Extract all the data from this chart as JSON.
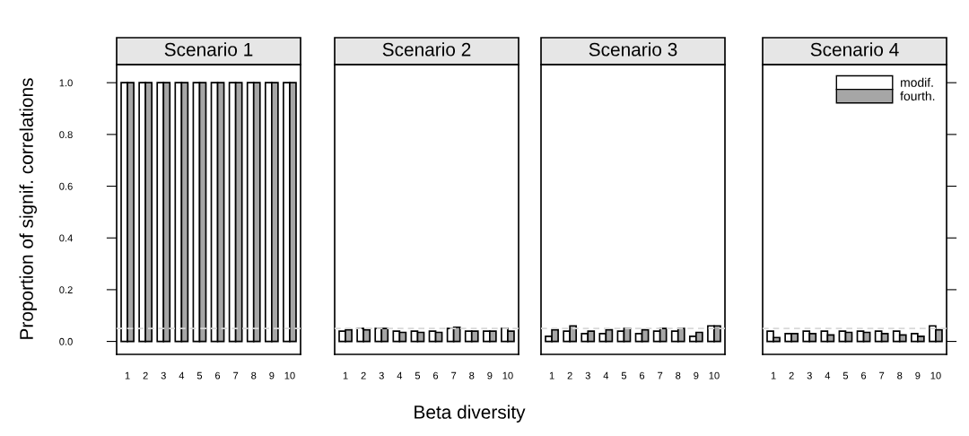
{
  "chart_data": [
    {
      "type": "bar",
      "title": "Scenario 1",
      "ylabel": "Proportion of signif. correlations",
      "categories": [
        "1",
        "2",
        "3",
        "4",
        "5",
        "6",
        "7",
        "8",
        "9",
        "10"
      ],
      "ylim": [
        -0.05,
        1.07
      ],
      "yticks": [
        {
          "value": 0,
          "label": "0.0"
        },
        0.2,
        0.4,
        0.6,
        0.8,
        {
          "value": 1,
          "label": "1.0"
        }
      ],
      "ref_lines": [
        {
          "axis": "y",
          "value": 0.05,
          "color": "#d9d9d9",
          "line_style": "dashed"
        }
      ],
      "series": [
        {
          "color": "#ffffff",
          "values": [
            1,
            1,
            1,
            1,
            1,
            1,
            1,
            1,
            1,
            1
          ]
        },
        {
          "color": "#a6a6a6",
          "values": [
            1,
            1,
            1,
            1,
            1,
            1,
            1,
            1,
            1,
            1
          ]
        }
      ]
    },
    {
      "type": "bar",
      "title": "Scenario 2",
      "xlabel": "Beta diversity",
      "categories": [
        "1",
        "2",
        "3",
        "4",
        "5",
        "6",
        "7",
        "8",
        "9",
        "10"
      ],
      "ylim": [
        -0.05,
        1.07
      ],
      "tick_labels": "x",
      "ref_lines": [
        {
          "axis": "y",
          "value": 0.05,
          "color": "#d9d9d9",
          "line_style": "dashed"
        }
      ],
      "series": [
        {
          "color": "#ffffff",
          "values": [
            0.04,
            0.05,
            0.05,
            0.04,
            0.04,
            0.04,
            0.05,
            0.04,
            0.04,
            0.05
          ]
        },
        {
          "color": "#a6a6a6",
          "values": [
            0.045,
            0.045,
            0.05,
            0.035,
            0.035,
            0.035,
            0.055,
            0.04,
            0.04,
            0.04
          ]
        }
      ]
    },
    {
      "type": "bar",
      "title": "Scenario 3",
      "categories": [
        "1",
        "2",
        "3",
        "4",
        "5",
        "6",
        "7",
        "8",
        "9",
        "10"
      ],
      "ylim": [
        -0.05,
        1.07
      ],
      "tick_labels": "x",
      "ref_lines": [
        {
          "axis": "y",
          "value": 0.05,
          "color": "#d9d9d9",
          "line_style": "dashed"
        }
      ],
      "series": [
        {
          "color": "#ffffff",
          "values": [
            0.02,
            0.04,
            0.03,
            0.03,
            0.04,
            0.03,
            0.04,
            0.04,
            0.02,
            0.06
          ]
        },
        {
          "color": "#a6a6a6",
          "values": [
            0.045,
            0.06,
            0.04,
            0.045,
            0.05,
            0.045,
            0.05,
            0.05,
            0.035,
            0.06
          ]
        }
      ]
    },
    {
      "type": "bar",
      "title": "Scenario 4",
      "categories": [
        "1",
        "2",
        "3",
        "4",
        "5",
        "6",
        "7",
        "8",
        "9",
        "10"
      ],
      "ylim": [
        -0.05,
        1.07
      ],
      "yticks": [
        0,
        0.2,
        0.4,
        0.6,
        0.8,
        1
      ],
      "tick_labels": "x",
      "legend": "top right",
      "ref_lines": [
        {
          "axis": "y",
          "value": 0.05,
          "color": "#d9d9d9",
          "line_style": "dashed"
        }
      ],
      "series": [
        {
          "name": "modif.",
          "color": "#ffffff",
          "values": [
            0.04,
            0.03,
            0.04,
            0.04,
            0.04,
            0.04,
            0.04,
            0.04,
            0.03,
            0.06
          ]
        },
        {
          "name": "fourth.",
          "color": "#a6a6a6",
          "values": [
            0.015,
            0.03,
            0.03,
            0.025,
            0.035,
            0.035,
            0.03,
            0.025,
            0.02,
            0.045
          ]
        }
      ]
    }
  ]
}
